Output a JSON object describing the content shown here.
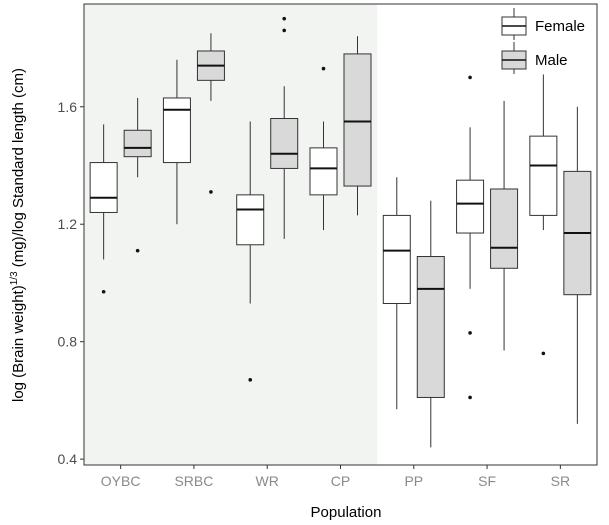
{
  "chart_data": {
    "type": "boxplot",
    "xlabel": "Population",
    "ylabel_main": "log (Brain weight)",
    "ylabel_sup": "1/3",
    "ylabel_rest": " (mg)/log Standard length (cm)",
    "ylim": [
      0.38,
      1.95
    ],
    "yticks": [
      0.4,
      0.8,
      1.2,
      1.6
    ],
    "ytick_labels": [
      "0.4",
      "0.8",
      "1.2",
      "1.6"
    ],
    "categories": [
      "OYBC",
      "SRBC",
      "WR",
      "CP",
      "PP",
      "SF",
      "SR"
    ],
    "shaded_categories": [
      "OYBC",
      "SRBC",
      "WR",
      "CP"
    ],
    "legend_position": "top-right",
    "series": [
      {
        "name": "Female",
        "color": "#ffffff",
        "boxes": [
          {
            "min": 1.08,
            "q1": 1.24,
            "median": 1.29,
            "q3": 1.41,
            "max": 1.54,
            "outliers": [
              0.97
            ]
          },
          {
            "min": 1.2,
            "q1": 1.41,
            "median": 1.59,
            "q3": 1.63,
            "max": 1.76,
            "outliers": []
          },
          {
            "min": 0.93,
            "q1": 1.13,
            "median": 1.25,
            "q3": 1.3,
            "max": 1.55,
            "outliers": [
              0.67
            ]
          },
          {
            "min": 1.18,
            "q1": 1.3,
            "median": 1.39,
            "q3": 1.46,
            "max": 1.55,
            "outliers": [
              1.73
            ]
          },
          {
            "min": 0.57,
            "q1": 0.93,
            "median": 1.11,
            "q3": 1.23,
            "max": 1.36,
            "outliers": []
          },
          {
            "min": 0.98,
            "q1": 1.17,
            "median": 1.27,
            "q3": 1.35,
            "max": 1.53,
            "outliers": [
              1.7,
              0.83,
              0.61
            ]
          },
          {
            "min": 1.18,
            "q1": 1.23,
            "median": 1.4,
            "q3": 1.5,
            "max": 1.71,
            "outliers": [
              0.76
            ]
          }
        ]
      },
      {
        "name": "Male",
        "color": "#d9d9d9",
        "boxes": [
          {
            "min": 1.36,
            "q1": 1.43,
            "median": 1.46,
            "q3": 1.52,
            "max": 1.63,
            "outliers": [
              1.11
            ]
          },
          {
            "min": 1.62,
            "q1": 1.69,
            "median": 1.74,
            "q3": 1.79,
            "max": 1.85,
            "outliers": [
              1.31
            ]
          },
          {
            "min": 1.15,
            "q1": 1.39,
            "median": 1.44,
            "q3": 1.56,
            "max": 1.67,
            "outliers": [
              1.9,
              1.86
            ]
          },
          {
            "min": 1.23,
            "q1": 1.33,
            "median": 1.55,
            "q3": 1.78,
            "max": 1.84,
            "outliers": []
          },
          {
            "min": 0.44,
            "q1": 0.61,
            "median": 0.98,
            "q3": 1.09,
            "max": 1.28,
            "outliers": []
          },
          {
            "min": 0.77,
            "q1": 1.05,
            "median": 1.12,
            "q3": 1.32,
            "max": 1.62,
            "outliers": []
          },
          {
            "min": 0.52,
            "q1": 0.96,
            "median": 1.17,
            "q3": 1.38,
            "max": 1.6,
            "outliers": []
          }
        ]
      }
    ]
  }
}
